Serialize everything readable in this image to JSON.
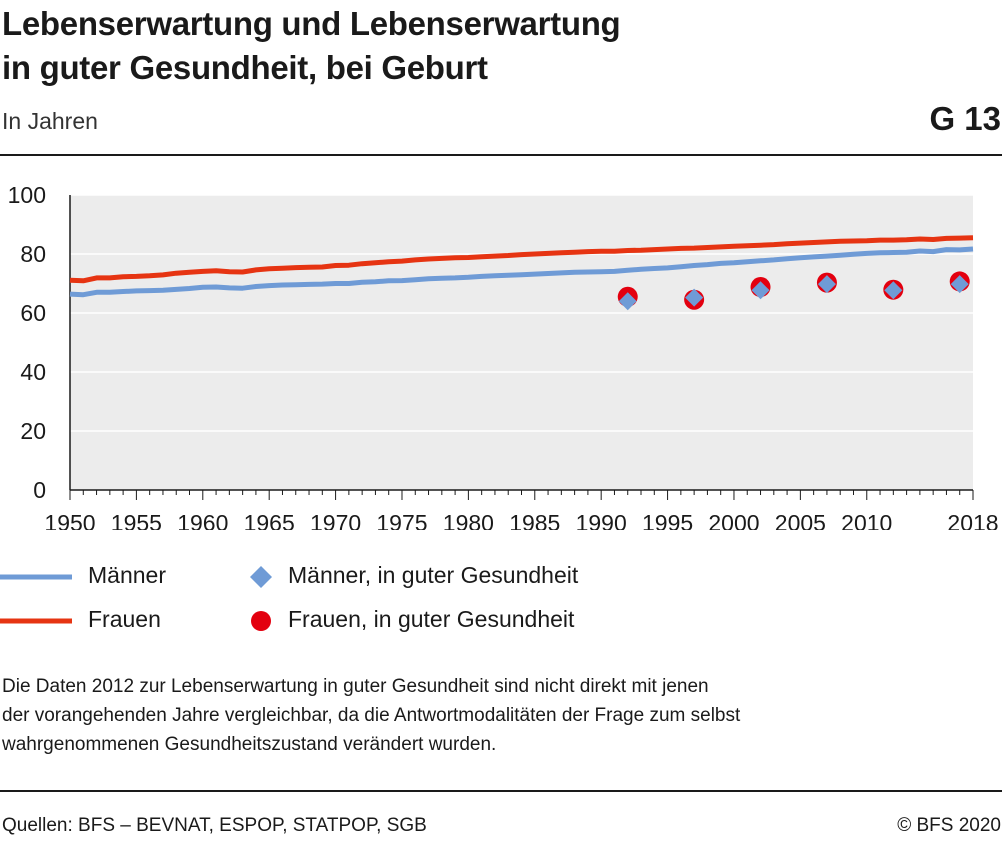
{
  "header": {
    "title_line1": "Lebenserwartung und Lebenserwartung",
    "title_line2": "in guter Gesundheit, bei Geburt",
    "subtitle": "In Jahren",
    "code": "G 13"
  },
  "colors": {
    "maenner": "#6f9bd6",
    "frauen": "#e63412",
    "plot_bg": "#ececec",
    "gridline": "#ffffff"
  },
  "chart_data": {
    "type": "line",
    "title": "Lebenserwartung und Lebenserwartung in guter Gesundheit, bei Geburt",
    "ylabel": "In Jahren",
    "xlim": [
      1950,
      2018
    ],
    "ylim": [
      0,
      100
    ],
    "xticks": [
      1950,
      1955,
      1960,
      1965,
      1970,
      1975,
      1980,
      1985,
      1990,
      1995,
      2000,
      2005,
      2010,
      2018
    ],
    "yticks": [
      0,
      20,
      40,
      60,
      80,
      100
    ],
    "grid": true,
    "legend_position": "bottom",
    "x": [
      1950,
      1951,
      1952,
      1953,
      1954,
      1955,
      1956,
      1957,
      1958,
      1959,
      1960,
      1961,
      1962,
      1963,
      1964,
      1965,
      1966,
      1967,
      1968,
      1969,
      1970,
      1971,
      1972,
      1973,
      1974,
      1975,
      1976,
      1977,
      1978,
      1979,
      1980,
      1981,
      1982,
      1983,
      1984,
      1985,
      1986,
      1987,
      1988,
      1989,
      1990,
      1991,
      1992,
      1993,
      1994,
      1995,
      1996,
      1997,
      1998,
      1999,
      2000,
      2001,
      2002,
      2003,
      2004,
      2005,
      2006,
      2007,
      2008,
      2009,
      2010,
      2011,
      2012,
      2013,
      2014,
      2015,
      2016,
      2017,
      2018
    ],
    "series": [
      {
        "name": "Männer",
        "kind": "line",
        "color": "#6f9bd6",
        "values": [
          66.4,
          66.2,
          67.0,
          67.0,
          67.3,
          67.5,
          67.6,
          67.7,
          68.0,
          68.3,
          68.7,
          68.8,
          68.5,
          68.4,
          69.0,
          69.3,
          69.5,
          69.6,
          69.7,
          69.8,
          70.0,
          70.0,
          70.4,
          70.6,
          70.9,
          71.0,
          71.3,
          71.6,
          71.8,
          71.9,
          72.1,
          72.4,
          72.6,
          72.8,
          73.0,
          73.2,
          73.4,
          73.6,
          73.8,
          73.9,
          74.0,
          74.1,
          74.5,
          74.8,
          75.1,
          75.3,
          75.7,
          76.1,
          76.4,
          76.8,
          77.0,
          77.4,
          77.7,
          78.0,
          78.4,
          78.7,
          79.0,
          79.3,
          79.6,
          79.9,
          80.2,
          80.4,
          80.5,
          80.6,
          81.0,
          80.8,
          81.5,
          81.4,
          81.7
        ]
      },
      {
        "name": "Frauen",
        "kind": "line",
        "color": "#e63412",
        "values": [
          71.1,
          70.9,
          71.9,
          71.9,
          72.3,
          72.4,
          72.6,
          72.9,
          73.5,
          73.8,
          74.1,
          74.3,
          74.0,
          73.9,
          74.6,
          75.0,
          75.2,
          75.4,
          75.5,
          75.6,
          76.1,
          76.2,
          76.7,
          77.0,
          77.4,
          77.6,
          78.0,
          78.3,
          78.5,
          78.7,
          78.8,
          79.1,
          79.3,
          79.5,
          79.8,
          80.0,
          80.2,
          80.4,
          80.6,
          80.8,
          80.9,
          80.9,
          81.2,
          81.3,
          81.5,
          81.7,
          81.9,
          82.0,
          82.2,
          82.4,
          82.6,
          82.8,
          83.0,
          83.2,
          83.5,
          83.7,
          83.9,
          84.1,
          84.3,
          84.4,
          84.5,
          84.7,
          84.7,
          84.8,
          85.1,
          84.9,
          85.3,
          85.4,
          85.5
        ]
      },
      {
        "name": "Männer, in guter Gesundheit",
        "kind": "scatter",
        "marker": "diamond",
        "color": "#6f9bd6",
        "x": [
          1992,
          1997,
          2002,
          2007,
          2012,
          2017
        ],
        "values": [
          64.0,
          65.2,
          67.7,
          69.8,
          67.7,
          69.8
        ]
      },
      {
        "name": "Frauen, in guter Gesundheit",
        "kind": "scatter",
        "marker": "circle",
        "color": "#e3000f",
        "x": [
          1992,
          1997,
          2002,
          2007,
          2012,
          2017
        ],
        "values": [
          65.5,
          64.5,
          68.8,
          70.3,
          67.9,
          70.7
        ]
      }
    ]
  },
  "legend": {
    "maenner": "Männer",
    "frauen": "Frauen",
    "maenner_gesund": "Männer, in guter Gesundheit",
    "frauen_gesund": "Frauen, in guter Gesundheit"
  },
  "note": {
    "line1": "Die Daten 2012 zur Lebenserwartung in guter Gesundheit sind nicht direkt mit jenen",
    "line2": "der vorangehenden Jahre vergleichbar, da die Antwortmodalitäten der Frage zum selbst",
    "line3": "wahrgenommenen Gesundheitszustand verändert wurden."
  },
  "footer": {
    "source": "Quellen: BFS – BEVNAT, ESPOP, STATPOP, SGB",
    "copyright": "© BFS 2020"
  }
}
